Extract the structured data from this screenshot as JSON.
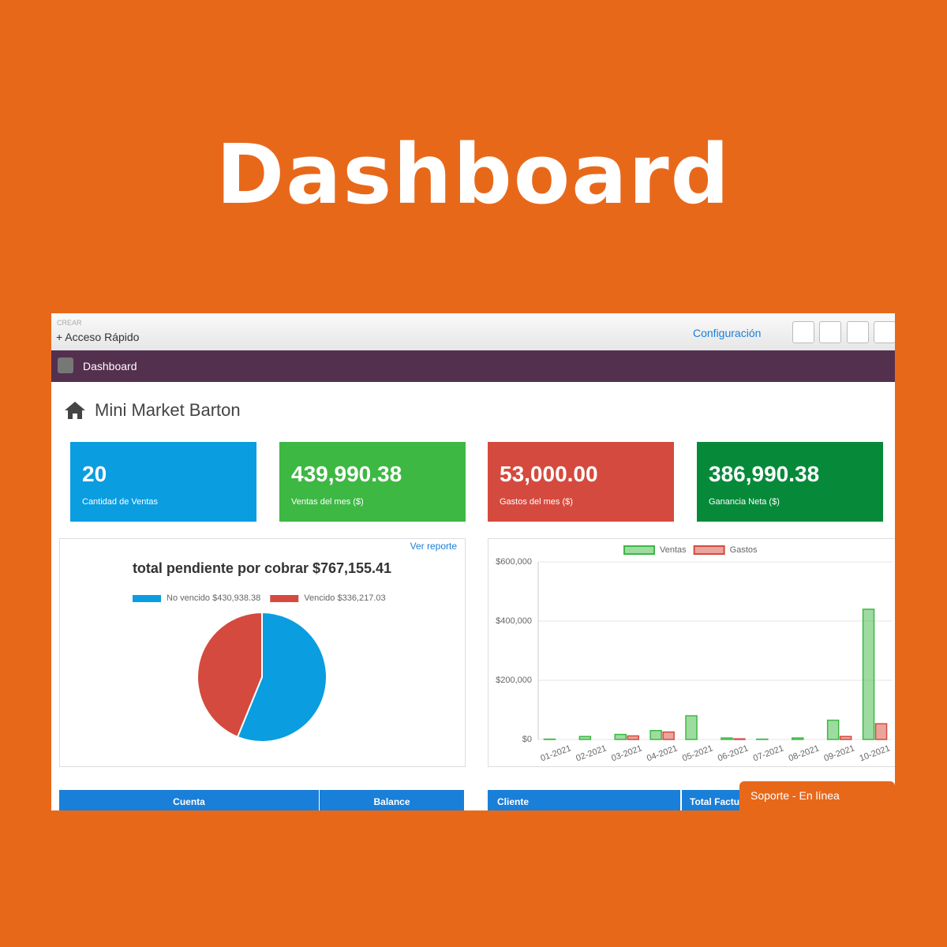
{
  "header": {
    "title": "Dashboard"
  },
  "topbar": {
    "create": "CREAR",
    "quick_access": "+ Acceso Rápido",
    "config": "Configuración"
  },
  "nav": {
    "item": "Dashboard"
  },
  "page": {
    "title": "Mini Market Barton"
  },
  "cards": [
    {
      "value": "20",
      "label": "Cantidad de Ventas",
      "color": "#0a9de0"
    },
    {
      "value": "439,990.38",
      "label": "Ventas del mes ($)",
      "color": "#3db843"
    },
    {
      "value": "53,000.00",
      "label": "Gastos del mes ($)",
      "color": "#d54a3e"
    },
    {
      "value": "386,990.38",
      "label": "Ganancia Neta ($)",
      "color": "#068a3a"
    }
  ],
  "report_link": "Ver reporte",
  "chart_data": [
    {
      "type": "pie",
      "title": "total pendiente por cobrar $767,155.41",
      "categories": [
        "No vencido $430,938.38",
        "Vencido $336,217.03"
      ],
      "values": [
        430938.38,
        336217.03
      ],
      "colors": [
        "#0a9de0",
        "#d54a3e"
      ]
    },
    {
      "type": "bar",
      "categories": [
        "01-2021",
        "02-2021",
        "03-2021",
        "04-2021",
        "05-2021",
        "06-2021",
        "07-2021",
        "08-2021",
        "09-2021",
        "10-2021"
      ],
      "series": [
        {
          "name": "Ventas",
          "color": "#3db843",
          "values": [
            1000,
            10000,
            17000,
            30000,
            80000,
            5000,
            1000,
            5000,
            65000,
            440000
          ]
        },
        {
          "name": "Gastos",
          "color": "#d54a3e",
          "values": [
            0,
            0,
            12000,
            25000,
            0,
            2000,
            0,
            0,
            10000,
            53000
          ]
        }
      ],
      "ylim": [
        0,
        600000
      ],
      "yticks": [
        {
          "value": 0,
          "label": "$0"
        },
        {
          "value": 200000,
          "label": "$200,000"
        },
        {
          "value": 400000,
          "label": "$400,000"
        },
        {
          "value": 600000,
          "label": "$600,000"
        }
      ],
      "grid": true,
      "legend": "top"
    }
  ],
  "tables": [
    {
      "headers": [
        "Cuenta",
        "Balance"
      ]
    },
    {
      "headers": [
        "Cliente",
        "Total Factur"
      ]
    }
  ],
  "support": "Soporte - En línea"
}
